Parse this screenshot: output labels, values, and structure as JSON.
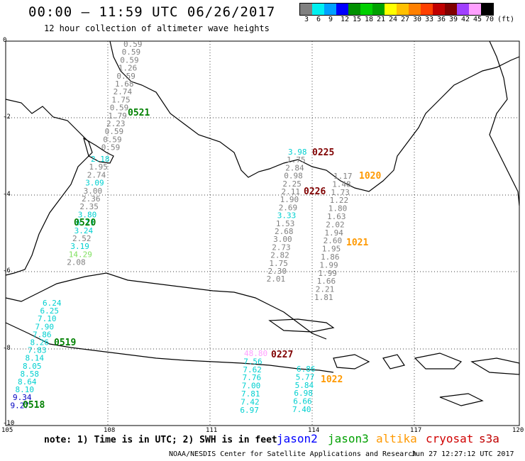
{
  "header": {
    "title": "00:00 – 11:59 UTC 06/26/2017",
    "subtitle": "12 hour collection of altimeter wave heights"
  },
  "scale": {
    "colors": [
      "#808080",
      "#00f0f0",
      "#00a0ff",
      "#0000ff",
      "#009000",
      "#00d000",
      "#00a000",
      "#ffff00",
      "#ffc000",
      "#ff8000",
      "#ff4000",
      "#c00000",
      "#800000",
      "#a040ff",
      "#ffa0ff",
      "#000000"
    ],
    "labels": [
      "3",
      "6",
      "9",
      "12",
      "15",
      "18",
      "21",
      "24",
      "27",
      "30",
      "33",
      "36",
      "39",
      "42",
      "45",
      "70",
      "(ft)"
    ]
  },
  "axes": {
    "x_ticks": [
      "105",
      "108",
      "111",
      "114",
      "117",
      "120"
    ],
    "y_ticks": [
      "0",
      "-2",
      "-4",
      "-6",
      "-8",
      "-10"
    ]
  },
  "passes": [
    {
      "id": "0521",
      "color": "#008000"
    },
    {
      "id": "0225",
      "color": "#800000"
    },
    {
      "id": "1020",
      "color": "#ff9900"
    },
    {
      "id": "0226",
      "color": "#800000"
    },
    {
      "id": "0520",
      "color": "#008000"
    },
    {
      "id": "1021",
      "color": "#ff9900"
    },
    {
      "id": "0519",
      "color": "#008000"
    },
    {
      "id": "0227",
      "color": "#800000"
    },
    {
      "id": "0518",
      "color": "#008000"
    },
    {
      "id": "1022",
      "color": "#ff9900"
    }
  ],
  "tracks": {
    "t0521": {
      "color": "#808080",
      "values": [
        "0.59",
        "0.59",
        "0.59",
        "1.26",
        "0.59",
        "1.68",
        "2.74",
        "1.75",
        "0.59",
        "1.79",
        "2.23",
        "0.59",
        "0.59",
        "0.59"
      ]
    },
    "t0520": {
      "values": [
        [
          "2.18",
          "#00d0d0"
        ],
        [
          "1.95",
          "#808080"
        ],
        [
          "2.74",
          "#808080"
        ],
        [
          "3.09",
          "#00d0d0"
        ],
        [
          "3.00",
          "#808080"
        ],
        [
          "2.36",
          "#808080"
        ],
        [
          "2.35",
          "#808080"
        ],
        [
          "3.80",
          "#00d0d0"
        ],
        [
          "6.11",
          "#00d0d0"
        ],
        [
          "3.24",
          "#00d0d0"
        ],
        [
          "2.52",
          "#808080"
        ],
        [
          "3.19",
          "#00d0d0"
        ],
        [
          "14.29",
          "#80e060"
        ],
        [
          "2.08",
          "#808080"
        ]
      ]
    },
    "t0225": {
      "values": [
        [
          "3.98",
          "#00d0d0"
        ],
        [
          "1.75",
          "#808080"
        ],
        [
          "2.84",
          "#808080"
        ],
        [
          "0.98",
          "#808080"
        ],
        [
          "2.25",
          "#808080"
        ],
        [
          "2.11",
          "#808080"
        ],
        [
          "1.90",
          "#808080"
        ],
        [
          "2.69",
          "#808080"
        ],
        [
          "3.33",
          "#00d0d0"
        ],
        [
          "1.53",
          "#808080"
        ],
        [
          "2.68",
          "#808080"
        ],
        [
          "3.00",
          "#808080"
        ],
        [
          "2.73",
          "#808080"
        ],
        [
          "2.82",
          "#808080"
        ],
        [
          "1.75",
          "#808080"
        ],
        [
          "2.30",
          "#808080"
        ],
        [
          "2.01",
          "#808080"
        ]
      ]
    },
    "t1020": {
      "color": "#808080",
      "values": [
        "1.17",
        "1.48",
        "1.73",
        "1.22",
        "1.80",
        "1.63",
        "2.02",
        "1.94",
        "2.60",
        "1.95",
        "1.86",
        "1.99",
        "1.99",
        "1.66",
        "2.21",
        "1.81"
      ]
    },
    "t0519": {
      "values": [
        [
          "6.24",
          "#00d0d0"
        ],
        [
          "6.25",
          "#00d0d0"
        ],
        [
          "7.10",
          "#00d0d0"
        ],
        [
          "7.90",
          "#00d0d0"
        ],
        [
          "7.86",
          "#00d0d0"
        ],
        [
          "8.26",
          "#00d0d0"
        ],
        [
          "7.83",
          "#00d0d0"
        ],
        [
          "8.14",
          "#00d0d0"
        ],
        [
          "8.05",
          "#00d0d0"
        ],
        [
          "8.58",
          "#00d0d0"
        ],
        [
          "8.64",
          "#00d0d0"
        ],
        [
          "8.10",
          "#00d0d0"
        ],
        [
          "9.34",
          "#0000c0"
        ],
        [
          "9.27",
          "#0000c0"
        ]
      ]
    },
    "t0227": {
      "values": [
        [
          "48.80",
          "#ffa0ff"
        ],
        [
          "7.56",
          "#00d0d0"
        ],
        [
          "7.62",
          "#00d0d0"
        ],
        [
          "7.76",
          "#00d0d0"
        ],
        [
          "7.00",
          "#00d0d0"
        ],
        [
          "7.81",
          "#00d0d0"
        ],
        [
          "7.42",
          "#00d0d0"
        ],
        [
          "6.97",
          "#00d0d0"
        ]
      ]
    },
    "t1022": {
      "color": "#00d0d0",
      "values": [
        "6.86",
        "5.77",
        "5.84",
        "6.98",
        "6.66",
        "7.40"
      ]
    }
  },
  "footer": {
    "note": "note: 1) Time is in UTC; 2) SWH is in feet",
    "legend": [
      {
        "label": "jason2",
        "color": "#0000ff"
      },
      {
        "label": "jason3",
        "color": "#00a000"
      },
      {
        "label": "altika",
        "color": "#ff9900"
      },
      {
        "label": "cryosat",
        "color": "#d00000"
      },
      {
        "label": "s3a",
        "color": "#c00000"
      }
    ],
    "credit": "NOAA/NESDIS Center for Satellite Applications and Research",
    "timestamp": "Jun 27 12:27:12 UTC 2017"
  }
}
